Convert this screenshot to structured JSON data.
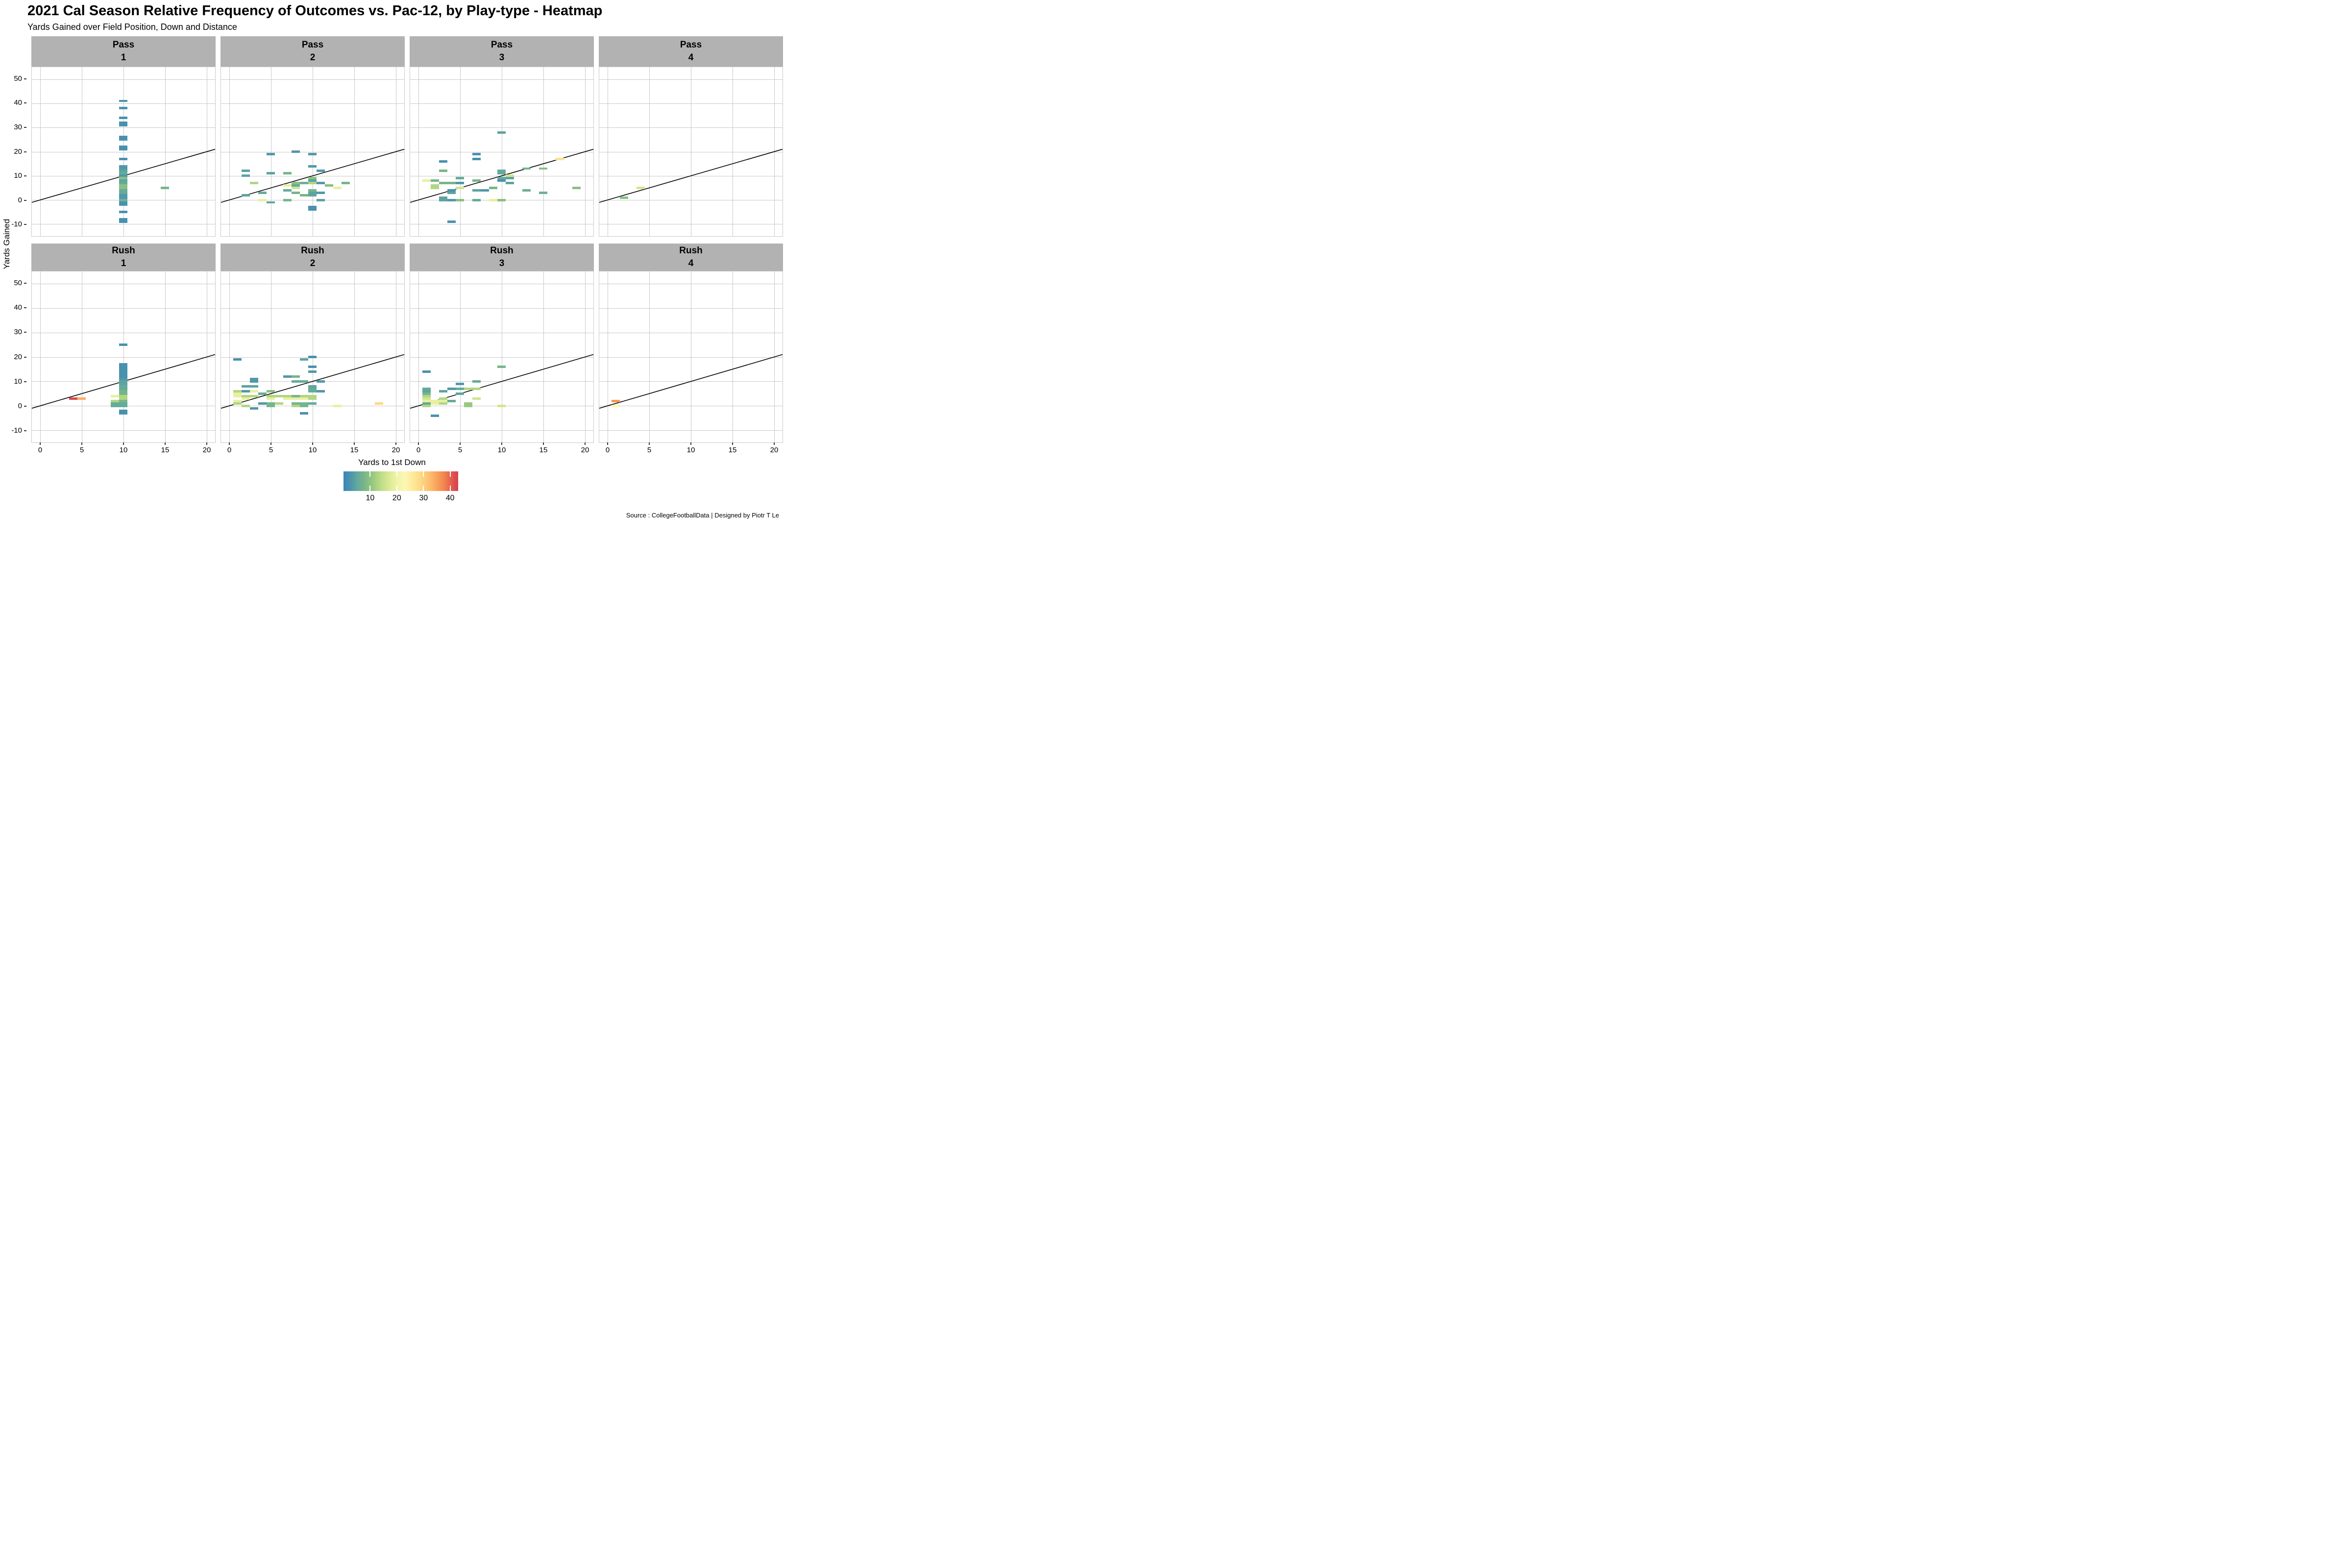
{
  "chart_data": {
    "type": "heatmap",
    "title": "2021 Cal Season Relative Frequency of Outcomes vs. Pac-12, by Play-type - Heatmap",
    "subtitle": "Yards Gained over Field Position, Down and Distance",
    "xlabel": "Yards to 1st Down",
    "ylabel": "Yards Gained",
    "source": "Source : CollegeFootballData | Designed by Piotr T Le",
    "xlim": [
      -1,
      21
    ],
    "ylim": [
      -15,
      55
    ],
    "x_ticks": [
      0,
      5,
      10,
      15,
      20
    ],
    "y_ticks": [
      50,
      40,
      30,
      20,
      10,
      0,
      -10
    ],
    "grid": true,
    "abline": {
      "label": "y = x",
      "x1": -1,
      "y1": -1,
      "x2": 21,
      "y2": 21
    },
    "strip_bg": "#b2b2b2",
    "gridline_color": "#c9c9c9",
    "legend": {
      "ticks": [
        10,
        20,
        30,
        40
      ],
      "domain": [
        0,
        43
      ],
      "stops": [
        [
          0,
          "#3a86b8"
        ],
        [
          3,
          "#4f96ab"
        ],
        [
          5,
          "#61a89e"
        ],
        [
          8,
          "#7ab787"
        ],
        [
          11,
          "#98c97d"
        ],
        [
          14,
          "#bddc87"
        ],
        [
          17,
          "#dae994"
        ],
        [
          20,
          "#eff3a6"
        ],
        [
          23,
          "#fbf8b4"
        ],
        [
          26,
          "#fee99a"
        ],
        [
          29,
          "#fdd884"
        ],
        [
          32,
          "#fdc170"
        ],
        [
          35,
          "#f9a25c"
        ],
        [
          38,
          "#f0824f"
        ],
        [
          41,
          "#e0544e"
        ],
        [
          43,
          "#d4404e"
        ]
      ]
    },
    "facets": [
      {
        "play_type": "Pass",
        "down": "1",
        "tiles": [
          [
            10,
            41,
            2
          ],
          [
            10,
            38,
            2
          ],
          [
            10,
            34,
            2
          ],
          [
            10,
            32,
            2
          ],
          [
            10,
            31,
            2
          ],
          [
            10,
            26,
            2
          ],
          [
            10,
            25,
            2
          ],
          [
            10,
            22,
            2
          ],
          [
            10,
            21,
            2
          ],
          [
            10,
            17,
            2
          ],
          [
            10,
            14,
            3.2
          ],
          [
            10,
            13,
            3.2
          ],
          [
            10,
            12,
            4.5
          ],
          [
            10,
            11,
            5.5
          ],
          [
            10,
            10,
            3.2
          ],
          [
            10,
            9,
            9.5
          ],
          [
            10,
            8,
            4.5
          ],
          [
            10,
            7,
            5.5
          ],
          [
            10,
            6,
            9.5
          ],
          [
            10,
            5,
            9.5
          ],
          [
            10,
            4,
            5.5
          ],
          [
            10,
            3,
            5.5
          ],
          [
            10,
            2,
            3.2
          ],
          [
            10,
            1,
            3.2
          ],
          [
            10,
            0,
            6.5
          ],
          [
            10,
            -1,
            2
          ],
          [
            10,
            -2,
            2
          ],
          [
            10,
            -5,
            2
          ],
          [
            10,
            -8,
            2
          ],
          [
            10,
            -9,
            2
          ],
          [
            15,
            5,
            7.5
          ]
        ]
      },
      {
        "play_type": "Pass",
        "down": "2",
        "tiles": [
          [
            8,
            20,
            3.2
          ],
          [
            5,
            19,
            3.2
          ],
          [
            10,
            19,
            3.2
          ],
          [
            10,
            14,
            3.2
          ],
          [
            11,
            12,
            3.2
          ],
          [
            2,
            12,
            4.5
          ],
          [
            2,
            10,
            4.5
          ],
          [
            5,
            11,
            4.5
          ],
          [
            7,
            11,
            7.5
          ],
          [
            3,
            7,
            13
          ],
          [
            10,
            9,
            9.5
          ],
          [
            10,
            8,
            4.5
          ],
          [
            8,
            7,
            9.5
          ],
          [
            9,
            7,
            6.5
          ],
          [
            10,
            7,
            13
          ],
          [
            11,
            7,
            3.2
          ],
          [
            14,
            7,
            7.5
          ],
          [
            7,
            6,
            19
          ],
          [
            8,
            6,
            5.5
          ],
          [
            12,
            6,
            9.5
          ],
          [
            8,
            5,
            16
          ],
          [
            13,
            5,
            19
          ],
          [
            7,
            4,
            5.5
          ],
          [
            10,
            4,
            7.5
          ],
          [
            8,
            3,
            7.5
          ],
          [
            10,
            3,
            4.5
          ],
          [
            11,
            3,
            3.2
          ],
          [
            9,
            2,
            7.5
          ],
          [
            10,
            2,
            4.5
          ],
          [
            2,
            2,
            4.5
          ],
          [
            4,
            3,
            5.5
          ],
          [
            4,
            0,
            19
          ],
          [
            7,
            0,
            7.5
          ],
          [
            11,
            0,
            4.5
          ],
          [
            5,
            -1,
            4.5
          ],
          [
            10,
            -3,
            2
          ],
          [
            10,
            -4,
            2
          ]
        ]
      },
      {
        "play_type": "Pass",
        "down": "3",
        "tiles": [
          [
            10,
            28,
            4.5
          ],
          [
            7,
            19,
            2
          ],
          [
            7,
            17,
            2
          ],
          [
            3,
            16,
            2
          ],
          [
            3,
            12,
            7.5
          ],
          [
            13,
            13,
            7.5
          ],
          [
            15,
            13,
            9.5
          ],
          [
            17,
            17,
            27.5
          ],
          [
            10,
            12,
            5.5
          ],
          [
            10,
            11,
            5.5
          ],
          [
            11,
            10,
            16
          ],
          [
            19,
            5,
            9.5
          ],
          [
            15,
            3,
            6.5
          ],
          [
            5,
            9,
            5.5
          ],
          [
            10,
            9,
            5.5
          ],
          [
            11,
            9,
            4.5
          ],
          [
            1,
            8,
            19
          ],
          [
            2,
            8,
            7.5
          ],
          [
            7,
            8,
            7.5
          ],
          [
            10,
            8,
            2
          ],
          [
            11,
            7,
            4.5
          ],
          [
            2,
            6,
            13
          ],
          [
            2,
            5,
            13
          ],
          [
            3,
            7,
            7.5
          ],
          [
            4,
            7,
            7.5
          ],
          [
            5,
            7,
            3.2
          ],
          [
            5,
            5,
            16
          ],
          [
            4,
            4,
            2
          ],
          [
            4,
            3,
            4.5
          ],
          [
            9,
            5,
            7.5
          ],
          [
            7,
            4,
            4.5
          ],
          [
            8,
            4,
            3.2
          ],
          [
            3,
            1,
            4.5
          ],
          [
            3,
            0,
            4.5
          ],
          [
            4,
            0,
            3.2
          ],
          [
            5,
            0,
            9.5
          ],
          [
            7,
            0,
            5.5
          ],
          [
            9,
            0,
            19
          ],
          [
            10,
            0,
            9.5
          ],
          [
            13,
            4,
            6.5
          ],
          [
            4,
            -9,
            2
          ]
        ]
      },
      {
        "play_type": "Pass",
        "down": "4",
        "tiles": [
          [
            4,
            5,
            16
          ],
          [
            2,
            1,
            9.5
          ]
        ]
      },
      {
        "play_type": "Rush",
        "down": "1",
        "tiles": [
          [
            10,
            25,
            2
          ],
          [
            10,
            17,
            2
          ],
          [
            10,
            16,
            2
          ],
          [
            10,
            15,
            2
          ],
          [
            10,
            14,
            2
          ],
          [
            10,
            13,
            2
          ],
          [
            10,
            12,
            2
          ],
          [
            10,
            11,
            3.2
          ],
          [
            10,
            10,
            4.5
          ],
          [
            10,
            9,
            4.5
          ],
          [
            10,
            8,
            5.5
          ],
          [
            10,
            7,
            5.5
          ],
          [
            10,
            6,
            7.5
          ],
          [
            10,
            5,
            7.5
          ],
          [
            10,
            4,
            13
          ],
          [
            10,
            3,
            13
          ],
          [
            10,
            2,
            7.5
          ],
          [
            10,
            1,
            5.5
          ],
          [
            10,
            0,
            5.5
          ],
          [
            10,
            -2,
            2
          ],
          [
            10,
            -3,
            2
          ],
          [
            9,
            4,
            19
          ],
          [
            9,
            2,
            13
          ],
          [
            9,
            1,
            5.5
          ],
          [
            9,
            0,
            5.5
          ],
          [
            4,
            3,
            42
          ],
          [
            5,
            3,
            34
          ]
        ]
      },
      {
        "play_type": "Rush",
        "down": "2",
        "tiles": [
          [
            10,
            20,
            2
          ],
          [
            9,
            19,
            4.5
          ],
          [
            1,
            19,
            2
          ],
          [
            10,
            16,
            2
          ],
          [
            10,
            14,
            3.2
          ],
          [
            7,
            12,
            3.2
          ],
          [
            8,
            12,
            7.5
          ],
          [
            8,
            10,
            5.5
          ],
          [
            9,
            10,
            5.5
          ],
          [
            11,
            10,
            3.2
          ],
          [
            3,
            11,
            3.2
          ],
          [
            3,
            10,
            3.2
          ],
          [
            2,
            8,
            4.5
          ],
          [
            3,
            8,
            4.5
          ],
          [
            10,
            8,
            4.5
          ],
          [
            10,
            7,
            5.5
          ],
          [
            10,
            6,
            5.5
          ],
          [
            11,
            6,
            3.2
          ],
          [
            1,
            6,
            13
          ],
          [
            2,
            6,
            3.2
          ],
          [
            3,
            6,
            19
          ],
          [
            5,
            6,
            9.5
          ],
          [
            4,
            5,
            5.5
          ],
          [
            1,
            5,
            19
          ],
          [
            1,
            4,
            19
          ],
          [
            2,
            4,
            13
          ],
          [
            3,
            4,
            13
          ],
          [
            5,
            4,
            13
          ],
          [
            6,
            4,
            13
          ],
          [
            7,
            4,
            13
          ],
          [
            8,
            4,
            7.5
          ],
          [
            9,
            4,
            13
          ],
          [
            10,
            4,
            13
          ],
          [
            2,
            3,
            19
          ],
          [
            5,
            3,
            19
          ],
          [
            7,
            3,
            19
          ],
          [
            8,
            3,
            19
          ],
          [
            9,
            3,
            19
          ],
          [
            10,
            3,
            13
          ],
          [
            1,
            2,
            19
          ],
          [
            1,
            1,
            13
          ],
          [
            4,
            1,
            3.2
          ],
          [
            5,
            1,
            7.5
          ],
          [
            6,
            1,
            13
          ],
          [
            8,
            1,
            7.5
          ],
          [
            9,
            1,
            7.5
          ],
          [
            10,
            1,
            5.5
          ],
          [
            2,
            0,
            13
          ],
          [
            5,
            0,
            7.5
          ],
          [
            8,
            0,
            13
          ],
          [
            9,
            0,
            7.5
          ],
          [
            13,
            0,
            19
          ],
          [
            3,
            -1,
            3.2
          ],
          [
            9,
            -3,
            2
          ],
          [
            18,
            1,
            29
          ]
        ]
      },
      {
        "play_type": "Rush",
        "down": "3",
        "tiles": [
          [
            1,
            14,
            2
          ],
          [
            10,
            16,
            7.5
          ],
          [
            5,
            9,
            3.2
          ],
          [
            7,
            10,
            5.5
          ],
          [
            4,
            7,
            3.2
          ],
          [
            5,
            7,
            5.5
          ],
          [
            6,
            7,
            13
          ],
          [
            7,
            7,
            13
          ],
          [
            3,
            6,
            4.5
          ],
          [
            1,
            7,
            5.5
          ],
          [
            1,
            6,
            4.5
          ],
          [
            1,
            5,
            7.5
          ],
          [
            1,
            4,
            13
          ],
          [
            1,
            3,
            16
          ],
          [
            1,
            2,
            19
          ],
          [
            1,
            1,
            5.5
          ],
          [
            1,
            0,
            13
          ],
          [
            2,
            2,
            19
          ],
          [
            2,
            1,
            19
          ],
          [
            3,
            3,
            13
          ],
          [
            3,
            2,
            19
          ],
          [
            3,
            1,
            13
          ],
          [
            4,
            2,
            5.5
          ],
          [
            5,
            5,
            4.5
          ],
          [
            7,
            3,
            16
          ],
          [
            6,
            1,
            11
          ],
          [
            6,
            0,
            11
          ],
          [
            10,
            0,
            16
          ],
          [
            2,
            -4,
            2
          ]
        ]
      },
      {
        "play_type": "Rush",
        "down": "4",
        "tiles": [
          [
            1,
            2,
            36
          ],
          [
            1,
            0,
            23
          ]
        ]
      }
    ]
  }
}
